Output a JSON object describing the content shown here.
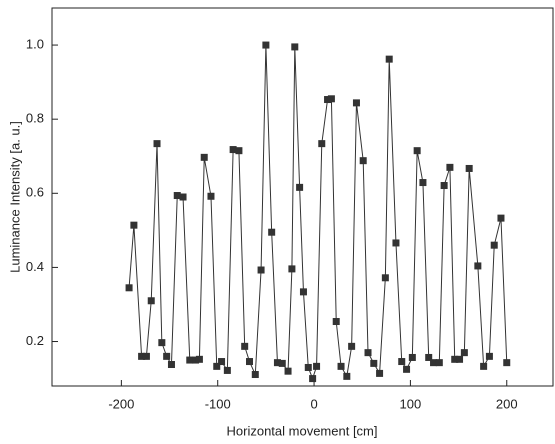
{
  "chart_data": {
    "type": "line",
    "x_label": "Horizontal movement [cm]",
    "y_label": "Luminance Intensity [a. u.]",
    "xlim": [
      -272,
      248
    ],
    "ylim": [
      0.08,
      1.1
    ],
    "xticks": [
      -200,
      -100,
      0,
      100,
      200
    ],
    "yticks": [
      0.2,
      0.4,
      0.6,
      0.8,
      {
        "value": 1.0,
        "label": "1.0"
      }
    ],
    "grid": false,
    "series": [
      {
        "color": "#333333",
        "x": [
          -192,
          -187,
          -179,
          -174,
          -169,
          -163,
          -158,
          -153,
          -148,
          -142,
          -136,
          -129,
          -123,
          -119,
          -114,
          -107,
          -101,
          -96,
          -90,
          -84,
          -78,
          -72,
          -67,
          -61,
          -55,
          -50,
          -44,
          -38,
          -33,
          -27,
          -23,
          -20,
          -15,
          -11,
          -6,
          -1.5,
          2.6,
          8,
          14,
          18,
          23,
          28,
          34,
          39,
          44,
          51,
          56,
          62,
          68,
          74,
          78,
          85,
          91,
          96,
          102,
          107,
          113,
          119,
          124,
          130,
          135,
          141,
          146,
          151,
          156,
          161,
          170,
          176,
          182,
          187,
          194,
          200
        ],
        "values": [
          0.345,
          0.514,
          0.16,
          0.16,
          0.31,
          0.734,
          0.197,
          0.16,
          0.138,
          0.594,
          0.59,
          0.15,
          0.15,
          0.152,
          0.697,
          0.592,
          0.133,
          0.146,
          0.122,
          0.718,
          0.715,
          0.187,
          0.146,
          0.111,
          0.393,
          1.0,
          0.495,
          0.143,
          0.141,
          0.12,
          0.396,
          0.995,
          0.616,
          0.334,
          0.13,
          0.1,
          0.133,
          0.734,
          0.853,
          0.855,
          0.254,
          0.133,
          0.106,
          0.187,
          0.844,
          0.688,
          0.17,
          0.141,
          0.114,
          0.372,
          0.962,
          0.466,
          0.146,
          0.125,
          0.157,
          0.715,
          0.629,
          0.157,
          0.143,
          0.143,
          0.621,
          0.67,
          0.152,
          0.152,
          0.17,
          0.667,
          0.404,
          0.133,
          0.16,
          0.46,
          0.533,
          0.143
        ]
      }
    ]
  }
}
